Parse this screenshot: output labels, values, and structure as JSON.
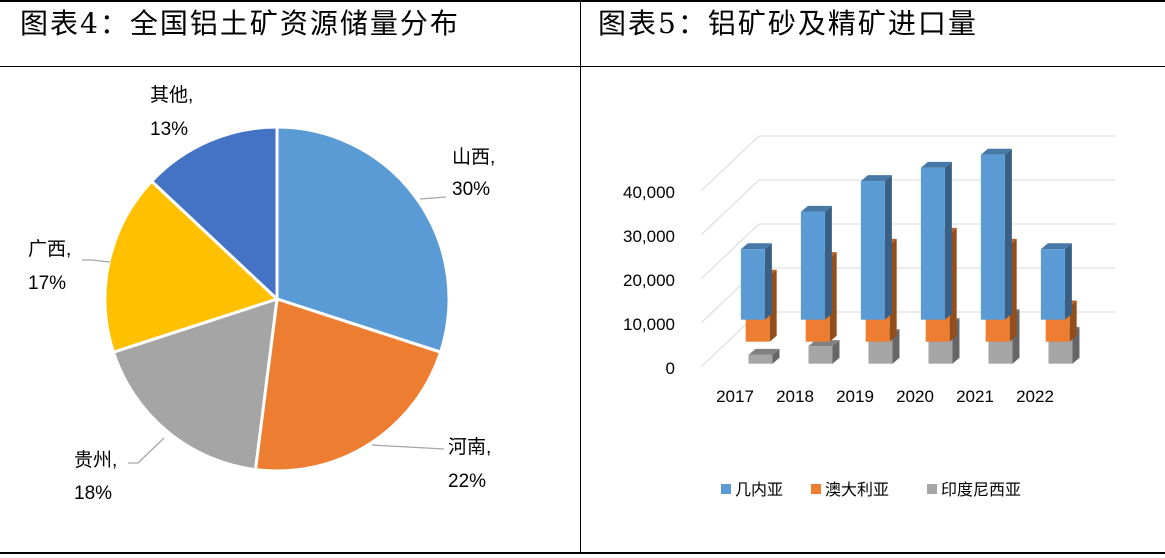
{
  "figure_left": {
    "title": "图表4：全国铝土矿资源储量分布"
  },
  "figure_right": {
    "title": "图表5：铝矿砂及精矿进口量"
  },
  "chart_data": [
    {
      "type": "pie",
      "slices": [
        {
          "name": "山西",
          "percent_label": "30%",
          "value": 30,
          "color": "#5B9BD5"
        },
        {
          "name": "河南",
          "percent_label": "22%",
          "value": 22,
          "color": "#ED7D31"
        },
        {
          "name": "贵州",
          "percent_label": "18%",
          "value": 18,
          "color": "#A5A5A5"
        },
        {
          "name": "广西",
          "percent_label": "17%",
          "value": 17,
          "color": "#FFC000"
        },
        {
          "name": "其他",
          "percent_label": "13%",
          "value": 13,
          "color": "#4472C4"
        }
      ],
      "start_angle_deg": 0,
      "direction": "clockwise"
    },
    {
      "type": "bar",
      "style": "3d-clustered-column",
      "categories": [
        "2017",
        "2018",
        "2019",
        "2020",
        "2021",
        "2022"
      ],
      "series": [
        {
          "name": "几内亚",
          "color": "#5B9BD5",
          "values": [
            16000,
            24500,
            31500,
            34500,
            37500,
            16000
          ]
        },
        {
          "name": "澳大利亚",
          "color": "#ED7D31",
          "values": [
            15000,
            19000,
            22000,
            24500,
            22000,
            8000
          ]
        },
        {
          "name": "印度尼西亚",
          "color": "#A5A5A5",
          "values": [
            2000,
            4000,
            6500,
            9000,
            11000,
            7000
          ]
        }
      ],
      "y_ticks": [
        "0",
        "10,000",
        "20,000",
        "30,000",
        "40,000"
      ],
      "ylim": [
        0,
        40000
      ],
      "grid": true,
      "legend_position": "bottom"
    }
  ]
}
